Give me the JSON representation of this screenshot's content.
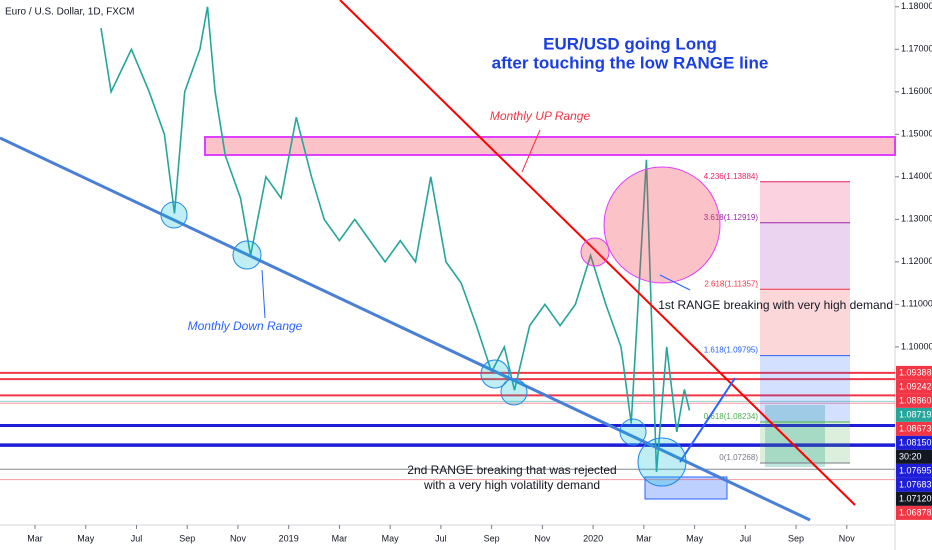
{
  "chart_data": {
    "type": "line",
    "title": "Euro / U.S. Dollar, 1D, FXCM",
    "headline": [
      "EUR/USD going Long",
      "after touching the low RANGE line"
    ],
    "annotations": {
      "up_range": "Monthly UP Range",
      "down_range": "Monthly Down Range",
      "first_break": "1st RANGE breaking with very high demand",
      "second_break": [
        "2nd RANGE breaking that was rejected",
        "with a very high volatility demand"
      ]
    },
    "color": "#26a69a",
    "x": [
      2.6,
      3.0,
      3.8,
      4.5,
      5.1,
      5.5,
      5.9,
      6.5,
      6.8,
      7.1,
      7.5,
      8.1,
      8.5,
      9.1,
      9.7,
      10.3,
      10.9,
      11.4,
      12.0,
      12.6,
      13.2,
      13.8,
      14.4,
      15.0,
      15.6,
      16.2,
      16.8,
      17.4,
      18.0,
      18.5,
      18.9,
      19.5,
      20.1,
      20.7,
      21.3,
      21.9,
      22.5,
      23.1,
      23.5,
      24.1,
      24.5,
      24.9,
      25.3,
      25.6,
      25.8
    ],
    "values": [
      1.175,
      1.16,
      1.17,
      1.16,
      1.15,
      1.1314,
      1.16,
      1.17,
      1.18,
      1.16,
      1.145,
      1.135,
      1.1215,
      1.14,
      1.135,
      1.154,
      1.14,
      1.13,
      1.125,
      1.13,
      1.125,
      1.12,
      1.125,
      1.12,
      1.14,
      1.12,
      1.115,
      1.105,
      1.0941,
      1.1,
      1.0898,
      1.105,
      1.11,
      1.105,
      1.11,
      1.1215,
      1.11,
      1.1,
      1.082,
      1.144,
      1.0706,
      1.1,
      1.08,
      1.09,
      1.085
    ],
    "xlim": [
      -1.38,
      33.9
    ],
    "ylim": [
      1.0581,
      1.1816
    ],
    "xticks": [
      {
        "value": 0,
        "label": "Mar"
      },
      {
        "value": 2,
        "label": "May"
      },
      {
        "value": 4,
        "label": "Jul"
      },
      {
        "value": 6,
        "label": "Sep"
      },
      {
        "value": 8,
        "label": "Nov"
      },
      {
        "value": 10,
        "label": "2019"
      },
      {
        "value": 12,
        "label": "Mar"
      },
      {
        "value": 14,
        "label": "May"
      },
      {
        "value": 16,
        "label": "Jul"
      },
      {
        "value": 18,
        "label": "Sep"
      },
      {
        "value": 20,
        "label": "Nov"
      },
      {
        "value": 22,
        "label": "2020"
      },
      {
        "value": 24,
        "label": "Mar"
      },
      {
        "value": 26,
        "label": "May"
      },
      {
        "value": 28,
        "label": "Jul"
      },
      {
        "value": 30,
        "label": "Sep"
      },
      {
        "value": 32,
        "label": "Nov"
      }
    ],
    "yticks": [
      {
        "value": 1.18,
        "label": "1.18000"
      },
      {
        "value": 1.17,
        "label": "1.17000"
      },
      {
        "value": 1.16,
        "label": "1.16000"
      },
      {
        "value": 1.15,
        "label": "1.15000"
      },
      {
        "value": 1.14,
        "label": "1.14000"
      },
      {
        "value": 1.13,
        "label": "1.13000"
      },
      {
        "value": 1.12,
        "label": "1.12000"
      },
      {
        "value": 1.11,
        "label": "1.11000"
      },
      {
        "value": 1.1,
        "label": "1.10000"
      }
    ],
    "levels": [
      {
        "value": 1.09388,
        "label": "1.09388",
        "color": "#f23645"
      },
      {
        "value": 1.09242,
        "label": "1.09242",
        "color": "#f23645"
      },
      {
        "value": 1.0886,
        "label": "1.08860",
        "color": "#f23645"
      },
      {
        "value": 1.08719,
        "label": "1.08719",
        "color": "#26a69a"
      },
      {
        "value": 1.08673,
        "label": "1.08673",
        "color": "#f23645"
      },
      {
        "value": 1.0815,
        "label": "1.08150",
        "color": "#1e1ed8"
      },
      {
        "value": 1.07695,
        "label": "1.07695",
        "color": "#1e1ed8"
      },
      {
        "value": 1.07683,
        "label": "1.07683",
        "color": "#1e1ed8"
      },
      {
        "value": 1.0712,
        "label": "1.07120",
        "color": "#131722"
      },
      {
        "value": 1.06878,
        "label": "1.06878",
        "color": "#f23645"
      }
    ],
    "countdown": "30:20",
    "fib": [
      {
        "value": 1.13884,
        "label": "4.236(1.13884)",
        "color": "#e91e63"
      },
      {
        "value": 1.12919,
        "label": "3.618(1.12919)",
        "color": "#9c27b0"
      },
      {
        "value": 1.11357,
        "label": "2.618(1.11357)",
        "color": "#f23645"
      },
      {
        "value": 1.09795,
        "label": "1.618(1.09795)",
        "color": "#2962ff"
      },
      {
        "value": 1.08234,
        "label": "0.618(1.08234)",
        "color": "#4caf50"
      },
      {
        "value": 1.07268,
        "label": "0(1.07268)",
        "color": "#787b86"
      }
    ]
  }
}
